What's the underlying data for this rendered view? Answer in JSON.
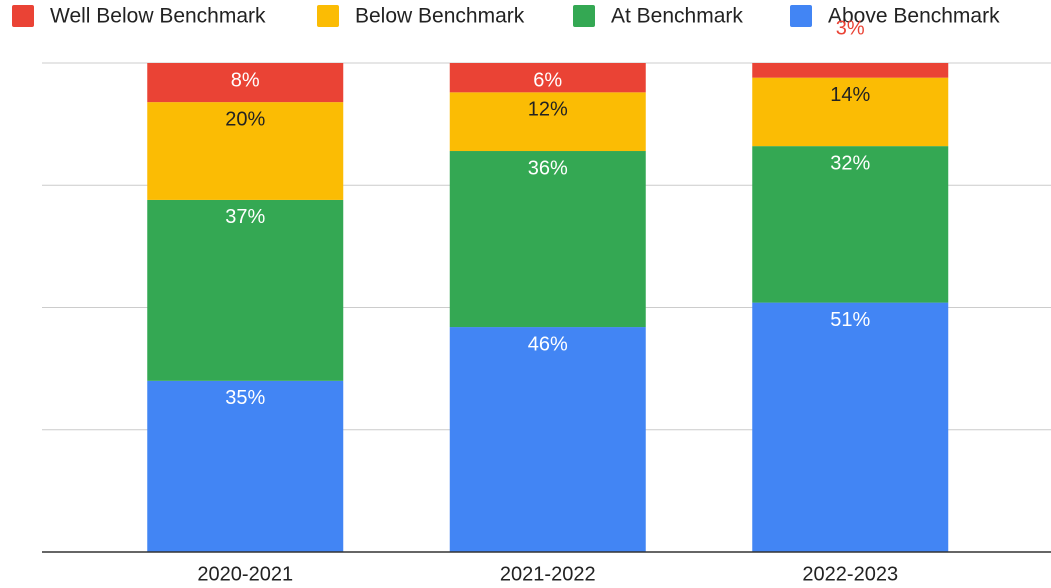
{
  "chart_data": {
    "type": "stacked_bar",
    "categories": [
      "2020-2021",
      "2021-2022",
      "2022-2023"
    ],
    "series": [
      {
        "name": "Well Below Benchmark",
        "color": "#ea4335",
        "values": [
          8,
          6,
          3
        ],
        "value_labels": [
          "8%",
          "6%",
          "3%"
        ]
      },
      {
        "name": "Below Benchmark",
        "color": "#fbbc04",
        "values": [
          20,
          12,
          14
        ],
        "value_labels": [
          "20%",
          "12%",
          "14%"
        ]
      },
      {
        "name": "At Benchmark",
        "color": "#34a853",
        "values": [
          37,
          36,
          32
        ],
        "value_labels": [
          "37%",
          "36%",
          "32%"
        ]
      },
      {
        "name": "Above Benchmark",
        "color": "#4285f4",
        "values": [
          35,
          46,
          51
        ],
        "value_labels": [
          "35%",
          "46%",
          "51%"
        ]
      }
    ],
    "ylim": [
      0,
      100
    ],
    "yticks": [
      0,
      25,
      50,
      75,
      100
    ],
    "grid": true,
    "legend": "top"
  }
}
